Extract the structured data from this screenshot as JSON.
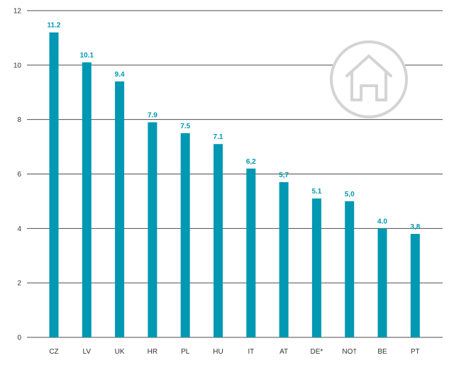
{
  "chart_data": {
    "type": "bar",
    "categories": [
      "CZ",
      "LV",
      "UK",
      "HR",
      "PL",
      "HU",
      "IT",
      "AT",
      "DE*",
      "NO†",
      "BE",
      "PT"
    ],
    "values": [
      11.2,
      10.1,
      9.4,
      7.9,
      7.5,
      7.1,
      6.2,
      5.7,
      5.1,
      5.0,
      4.0,
      3.8
    ],
    "value_labels": [
      "11.2",
      "10.1",
      "9.4",
      "7.9",
      "7.5",
      "7.1",
      "6,2",
      "5,7",
      "5.1",
      "5,0",
      "4.0",
      "3,8"
    ],
    "yticks": [
      "0",
      "2",
      "4",
      "6",
      "8",
      "10",
      "12"
    ],
    "ylim": [
      0,
      12
    ],
    "grid": true,
    "bar_color": "#0098b3",
    "label_color": "#0098b3",
    "grid_color": "#4d4d4d",
    "icon": "house-icon",
    "icon_color": "#d4d4d4"
  }
}
